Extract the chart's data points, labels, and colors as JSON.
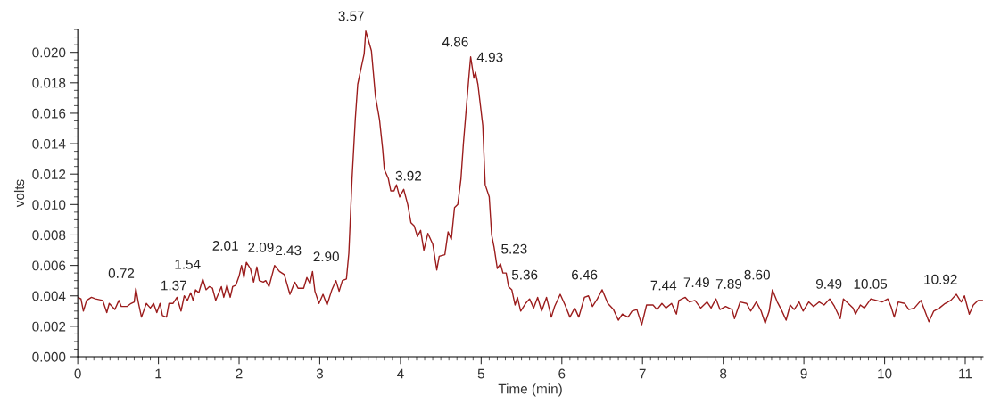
{
  "chart_data": {
    "type": "line",
    "xlabel": "Time (min)",
    "ylabel": "volts",
    "xlim": [
      0,
      11.22
    ],
    "ylim": [
      0,
      0.0215
    ],
    "xticks": [
      0,
      1,
      2,
      3,
      4,
      5,
      6,
      7,
      8,
      9,
      10,
      11
    ],
    "yticks": [
      {
        "value": 0,
        "label": "0.000"
      },
      {
        "value": 0.002,
        "label": "0.002"
      },
      {
        "value": 0.004,
        "label": "0.004"
      },
      {
        "value": 0.006,
        "label": "0.006"
      },
      {
        "value": 0.008,
        "label": "0.008"
      },
      {
        "value": 0.01,
        "label": "0.010"
      },
      {
        "value": 0.012,
        "label": "0.012"
      },
      {
        "value": 0.014,
        "label": "0.014"
      },
      {
        "value": 0.016,
        "label": "0.016"
      },
      {
        "value": 0.018,
        "label": "0.018"
      },
      {
        "value": 0.02,
        "label": "0.020"
      }
    ],
    "grid": false,
    "legend": false,
    "marker": "none",
    "line_style": "solid",
    "series": [
      {
        "color": "#9b1c1c",
        "x": [
          0,
          0.04,
          0.07,
          0.11,
          0.17,
          0.22,
          0.31,
          0.36,
          0.39,
          0.46,
          0.51,
          0.54,
          0.61,
          0.66,
          0.7,
          0.72,
          0.75,
          0.79,
          0.85,
          0.9,
          0.94,
          0.98,
          1.02,
          1.05,
          1.1,
          1.13,
          1.18,
          1.23,
          1.28,
          1.32,
          1.36,
          1.4,
          1.43,
          1.46,
          1.5,
          1.55,
          1.59,
          1.63,
          1.67,
          1.71,
          1.78,
          1.81,
          1.85,
          1.89,
          1.92,
          1.96,
          2.0,
          2.03,
          2.06,
          2.09,
          2.14,
          2.18,
          2.22,
          2.25,
          2.3,
          2.33,
          2.37,
          2.44,
          2.5,
          2.56,
          2.63,
          2.69,
          2.73,
          2.8,
          2.84,
          2.88,
          2.91,
          2.94,
          2.99,
          3.04,
          3.09,
          3.15,
          3.2,
          3.24,
          3.28,
          3.33,
          3.36,
          3.4,
          3.44,
          3.47,
          3.51,
          3.55,
          3.57,
          3.64,
          3.69,
          3.74,
          3.78,
          3.8,
          3.85,
          3.88,
          3.92,
          3.95,
          3.99,
          4.04,
          4.09,
          4.13,
          4.17,
          4.21,
          4.25,
          4.29,
          4.34,
          4.4,
          4.45,
          4.48,
          4.55,
          4.59,
          4.63,
          4.67,
          4.71,
          4.75,
          4.78,
          4.82,
          4.85,
          4.87,
          4.91,
          4.93,
          4.96,
          5.02,
          5.05,
          5.1,
          5.13,
          5.16,
          5.2,
          5.24,
          5.27,
          5.31,
          5.34,
          5.38,
          5.42,
          5.45,
          5.49,
          5.55,
          5.6,
          5.65,
          5.7,
          5.75,
          5.81,
          5.87,
          5.91,
          5.98,
          6.04,
          6.1,
          6.16,
          6.21,
          6.28,
          6.33,
          6.38,
          6.44,
          6.5,
          6.57,
          6.64,
          6.7,
          6.75,
          6.82,
          6.87,
          6.93,
          6.99,
          7.05,
          7.13,
          7.18,
          7.24,
          7.29,
          7.36,
          7.42,
          7.45,
          7.53,
          7.58,
          7.65,
          7.72,
          7.8,
          7.85,
          7.91,
          7.96,
          8.03,
          8.11,
          8.14,
          8.21,
          8.29,
          8.34,
          8.41,
          8.47,
          8.52,
          8.57,
          8.61,
          8.67,
          8.72,
          8.78,
          8.83,
          8.88,
          8.94,
          8.99,
          9.06,
          9.12,
          9.19,
          9.25,
          9.32,
          9.38,
          9.45,
          9.49,
          9.55,
          9.61,
          9.64,
          9.7,
          9.75,
          9.83,
          9.9,
          9.97,
          10.04,
          10.08,
          10.12,
          10.17,
          10.25,
          10.3,
          10.37,
          10.45,
          10.5,
          10.55,
          10.61,
          10.68,
          10.75,
          10.82,
          10.89,
          10.95,
          10.99,
          11.05,
          11.1,
          11.16,
          11.22
        ],
        "values": [
          0.0039,
          0.0038,
          0.003,
          0.0037,
          0.0039,
          0.0038,
          0.0037,
          0.0029,
          0.0035,
          0.0031,
          0.0037,
          0.0033,
          0.0033,
          0.0035,
          0.0036,
          0.0045,
          0.0036,
          0.0026,
          0.0035,
          0.0032,
          0.0035,
          0.0029,
          0.0035,
          0.0027,
          0.0026,
          0.0035,
          0.0035,
          0.0039,
          0.003,
          0.004,
          0.0037,
          0.0042,
          0.0037,
          0.0044,
          0.0042,
          0.0051,
          0.0044,
          0.0046,
          0.0045,
          0.0037,
          0.0046,
          0.0039,
          0.0047,
          0.0039,
          0.0046,
          0.0047,
          0.0053,
          0.006,
          0.0052,
          0.0062,
          0.0058,
          0.0049,
          0.0059,
          0.005,
          0.0049,
          0.005,
          0.0046,
          0.006,
          0.0056,
          0.0054,
          0.0041,
          0.0049,
          0.0045,
          0.0045,
          0.0052,
          0.0048,
          0.0056,
          0.0043,
          0.0035,
          0.0041,
          0.0034,
          0.0044,
          0.005,
          0.0043,
          0.005,
          0.0051,
          0.0068,
          0.0117,
          0.0156,
          0.0179,
          0.0189,
          0.0199,
          0.0214,
          0.0201,
          0.0171,
          0.0156,
          0.0136,
          0.0123,
          0.0117,
          0.0109,
          0.0109,
          0.0113,
          0.0105,
          0.011,
          0.01,
          0.0088,
          0.0086,
          0.0079,
          0.0083,
          0.007,
          0.0081,
          0.0074,
          0.0057,
          0.0066,
          0.0067,
          0.0082,
          0.0077,
          0.0098,
          0.01,
          0.0117,
          0.014,
          0.0166,
          0.0185,
          0.0197,
          0.0183,
          0.0187,
          0.0179,
          0.0152,
          0.0113,
          0.0105,
          0.008,
          0.0072,
          0.0058,
          0.0061,
          0.0055,
          0.0055,
          0.0046,
          0.0044,
          0.0034,
          0.0039,
          0.003,
          0.0035,
          0.0038,
          0.0032,
          0.0039,
          0.003,
          0.0039,
          0.0026,
          0.0033,
          0.0041,
          0.0034,
          0.0026,
          0.0032,
          0.0026,
          0.0039,
          0.004,
          0.0033,
          0.0038,
          0.0044,
          0.0035,
          0.0031,
          0.0024,
          0.0028,
          0.0026,
          0.003,
          0.0031,
          0.0021,
          0.0034,
          0.0034,
          0.0031,
          0.0035,
          0.0032,
          0.0035,
          0.0028,
          0.0037,
          0.0039,
          0.0036,
          0.0037,
          0.0032,
          0.0036,
          0.0032,
          0.0038,
          0.0031,
          0.0033,
          0.0031,
          0.0025,
          0.0036,
          0.0035,
          0.003,
          0.0036,
          0.003,
          0.0022,
          0.003,
          0.0044,
          0.0036,
          0.0031,
          0.0024,
          0.0034,
          0.0031,
          0.0036,
          0.003,
          0.0036,
          0.0033,
          0.0036,
          0.0034,
          0.0038,
          0.0033,
          0.0025,
          0.0038,
          0.0035,
          0.0032,
          0.0028,
          0.0034,
          0.0032,
          0.0038,
          0.0037,
          0.0036,
          0.0038,
          0.0033,
          0.0026,
          0.0036,
          0.0035,
          0.0031,
          0.0032,
          0.0037,
          0.003,
          0.0023,
          0.003,
          0.0032,
          0.0035,
          0.0037,
          0.0041,
          0.0036,
          0.004,
          0.0028,
          0.0034,
          0.0037,
          0.0037
        ]
      }
    ],
    "annotations": [
      {
        "text": "0.72",
        "x": 0.72,
        "y": 0.0045
      },
      {
        "text": "1.37",
        "x": 1.37,
        "y": 0.0037
      },
      {
        "text": "1.54",
        "x": 1.54,
        "y": 0.0051
      },
      {
        "text": "2.01",
        "x": 2.01,
        "y": 0.0055
      },
      {
        "text": "2.09",
        "x": 2.09,
        "y": 0.0062
      },
      {
        "text": "2.43",
        "x": 2.43,
        "y": 0.006
      },
      {
        "text": "2.90",
        "x": 2.9,
        "y": 0.0056
      },
      {
        "text": "3.57",
        "x": 3.57,
        "y": 0.0214
      },
      {
        "text": "3.92",
        "x": 3.92,
        "y": 0.0109
      },
      {
        "text": "4.86",
        "x": 4.86,
        "y": 0.0197
      },
      {
        "text": "4.93",
        "x": 4.93,
        "y": 0.0187
      },
      {
        "text": "5.23",
        "x": 5.23,
        "y": 0.0061
      },
      {
        "text": "5.36",
        "x": 5.36,
        "y": 0.0044
      },
      {
        "text": "6.46",
        "x": 6.46,
        "y": 0.0044
      },
      {
        "text": "7.44",
        "x": 7.44,
        "y": 0.0037
      },
      {
        "text": "7.49",
        "x": 7.49,
        "y": 0.0039
      },
      {
        "text": "7.89",
        "x": 7.89,
        "y": 0.0038
      },
      {
        "text": "8.60",
        "x": 8.6,
        "y": 0.0044
      },
      {
        "text": "9.49",
        "x": 9.49,
        "y": 0.0038
      },
      {
        "text": "10.05",
        "x": 10.05,
        "y": 0.0038
      },
      {
        "text": "10.92",
        "x": 10.92,
        "y": 0.0041
      }
    ]
  }
}
